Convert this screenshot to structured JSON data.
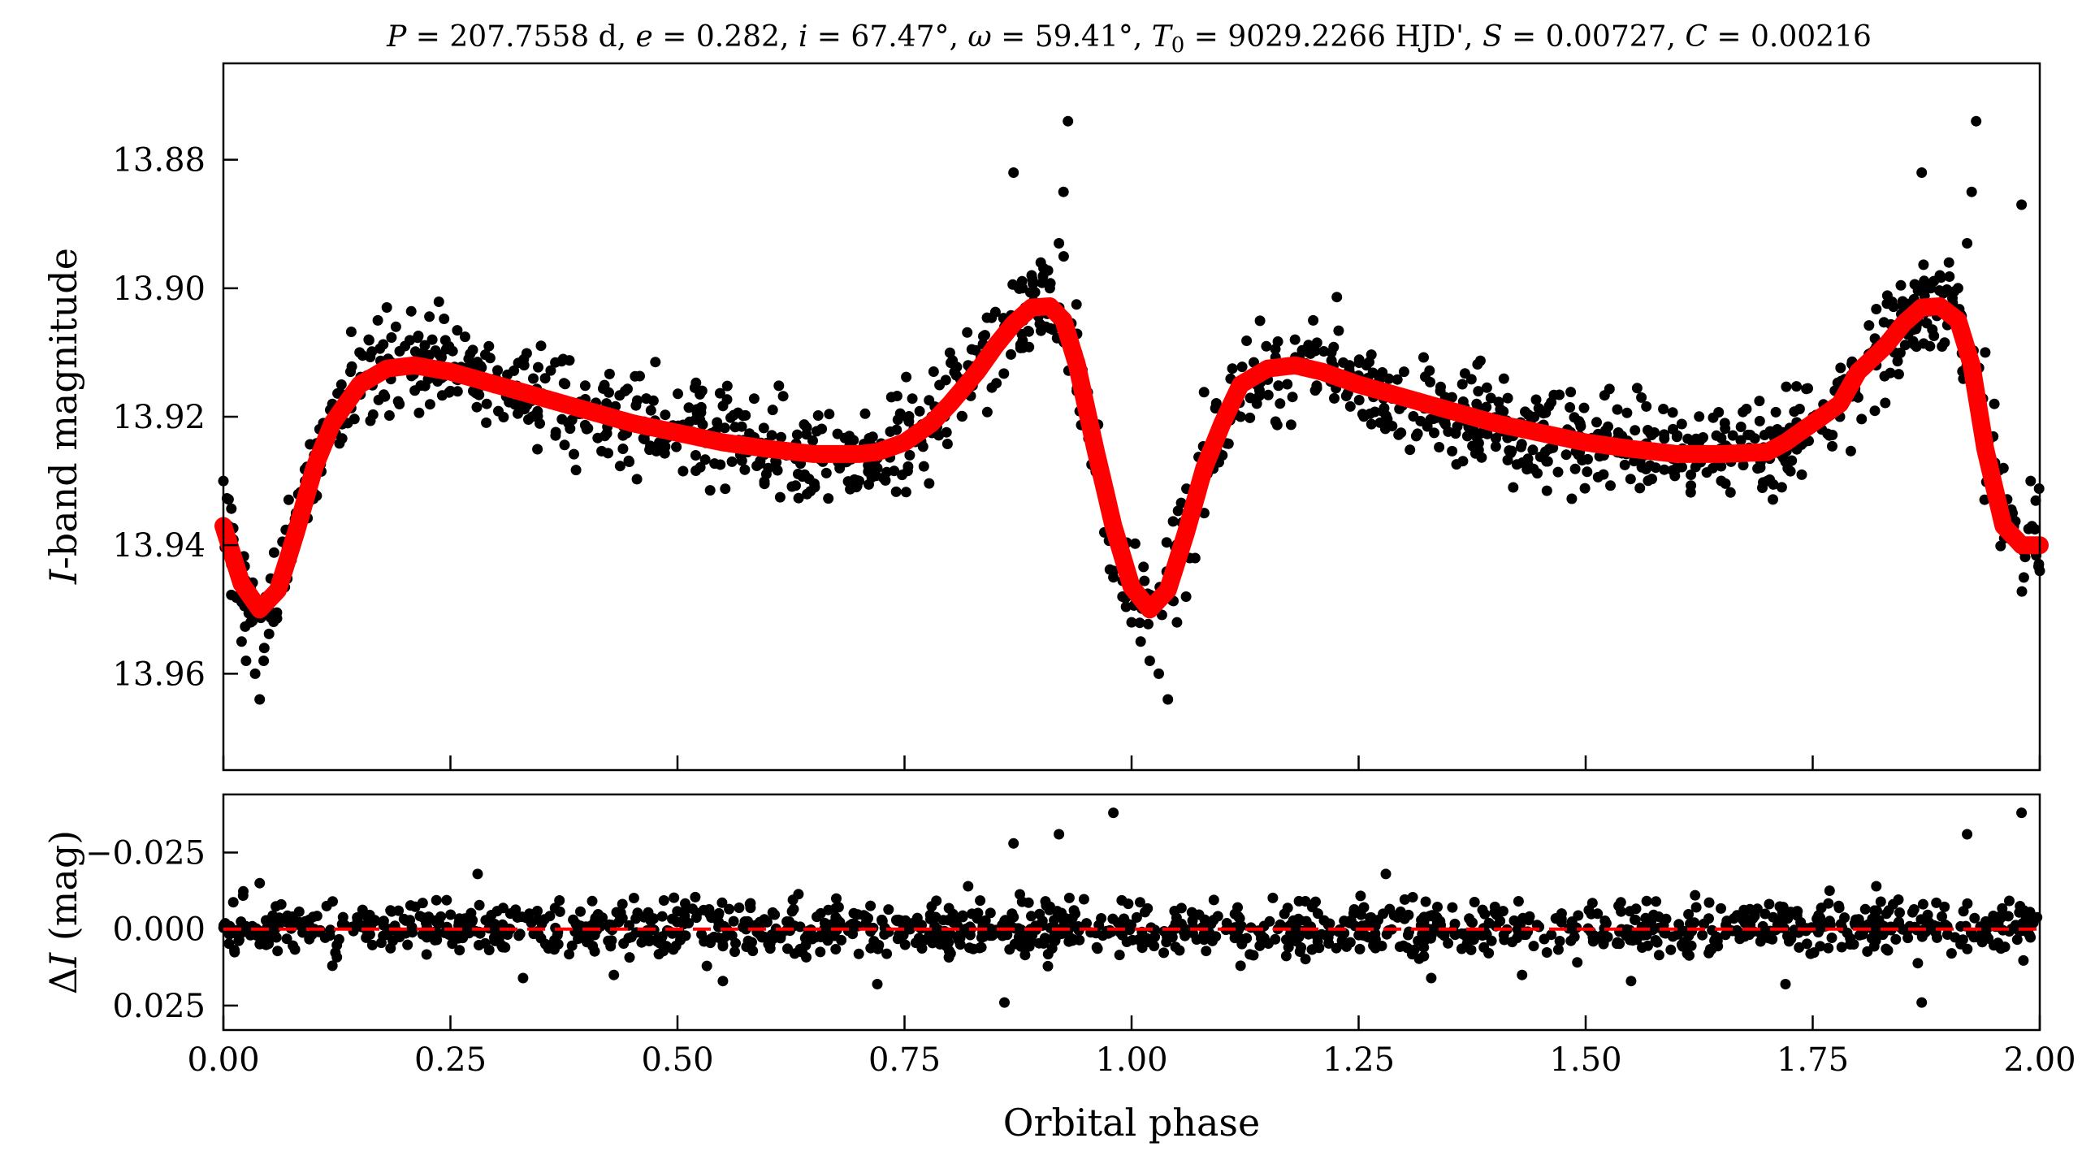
{
  "title": "P = 207.7558 d, e = 0.282, i = 67.47°, ω = 59.41°, T0 = 9029.2266 HJD', S = 0.00727, C = 0.00216",
  "title_parts": {
    "P_sym": "P",
    "P_val": " = 207.7558 d, ",
    "e_sym": "e",
    "e_val": " = 0.282, ",
    "i_sym": "i",
    "i_val": " = 67.47°, ",
    "w_sym": "ω",
    "w_val": " = 59.41°, ",
    "T_sym": "T",
    "T_sub": "0",
    "T_val": " = 9029.2266 HJD', ",
    "S_sym": "S",
    "S_val": " = 0.00727, ",
    "C_sym": "C",
    "C_val": " = 0.00216"
  },
  "top_ylabel": {
    "italic": "I",
    "rest": "-band magnitude"
  },
  "bottom_ylabel": {
    "prefix": "Δ",
    "italic": "I",
    "rest": " (mag)"
  },
  "xlabel": "Orbital phase",
  "colors": {
    "data": "#000000",
    "model": "#ff0000",
    "zero_line": "#ff0000",
    "axes": "#000000",
    "background": "#ffffff"
  },
  "chart_data": [
    {
      "type": "scatter",
      "panel": "light curve",
      "xlim": [
        0.0,
        2.0
      ],
      "ylim": [
        13.975,
        13.865
      ],
      "y_inverted": true,
      "xticks": [
        0.0,
        0.25,
        0.5,
        0.75,
        1.0,
        1.25,
        1.5,
        1.75,
        2.0
      ],
      "yticks": [
        13.88,
        13.9,
        13.92,
        13.94,
        13.96
      ],
      "ytick_labels": [
        "13.88",
        "13.90",
        "13.92",
        "13.94",
        "13.96"
      ],
      "grid": false,
      "legend": "none",
      "series": [
        {
          "kind": "model-line",
          "x": [
            0.0,
            0.02,
            0.04,
            0.06,
            0.08,
            0.1,
            0.12,
            0.15,
            0.18,
            0.21,
            0.25,
            0.3,
            0.35,
            0.4,
            0.45,
            0.5,
            0.55,
            0.6,
            0.65,
            0.7,
            0.72,
            0.75,
            0.78,
            0.8,
            0.83,
            0.85,
            0.87,
            0.89,
            0.91,
            0.925,
            0.94,
            0.96,
            0.98,
            1.0,
            1.02,
            1.04,
            1.06,
            1.08,
            1.1,
            1.12,
            1.15,
            1.18,
            1.21,
            1.25,
            1.3,
            1.35,
            1.4,
            1.45,
            1.5,
            1.55,
            1.6,
            1.65,
            1.7,
            1.72,
            1.75,
            1.78,
            1.8,
            1.83,
            1.85,
            1.87,
            1.89,
            1.91,
            1.925,
            1.94,
            1.96,
            1.98,
            2.0
          ],
          "y": [
            13.937,
            13.946,
            13.95,
            13.947,
            13.938,
            13.928,
            13.921,
            13.915,
            13.9125,
            13.912,
            13.913,
            13.915,
            13.917,
            13.919,
            13.921,
            13.9225,
            13.924,
            13.925,
            13.9258,
            13.9258,
            13.9255,
            13.924,
            13.921,
            13.918,
            13.913,
            13.909,
            13.9055,
            13.903,
            13.9028,
            13.905,
            13.912,
            13.925,
            13.937,
            13.9465,
            13.95,
            13.947,
            13.938,
            13.928,
            13.921,
            13.915,
            13.9125,
            13.912,
            13.913,
            13.915,
            13.917,
            13.919,
            13.921,
            13.9225,
            13.924,
            13.925,
            13.9258,
            13.9258,
            13.9255,
            13.924,
            13.921,
            13.918,
            13.913,
            13.909,
            13.9055,
            13.903,
            13.9028,
            13.905,
            13.912,
            13.925,
            13.937,
            13.94,
            13.94
          ]
        },
        {
          "kind": "observations",
          "x": [
            0.0,
            0.01,
            0.015,
            0.02,
            0.025,
            0.03,
            0.035,
            0.04,
            0.045,
            0.05,
            0.06,
            0.07,
            0.08,
            0.09,
            0.1,
            0.11,
            0.12,
            0.13,
            0.14,
            0.15,
            0.16,
            0.17,
            0.18,
            0.19,
            0.2,
            0.21,
            0.22,
            0.23,
            0.24,
            0.25,
            0.26,
            0.27,
            0.28,
            0.29,
            0.3,
            0.32,
            0.34,
            0.36,
            0.38,
            0.4,
            0.42,
            0.44,
            0.46,
            0.48,
            0.5,
            0.52,
            0.54,
            0.56,
            0.58,
            0.6,
            0.62,
            0.64,
            0.66,
            0.68,
            0.7,
            0.72,
            0.74,
            0.76,
            0.78,
            0.8,
            0.82,
            0.84,
            0.86,
            0.87,
            0.88,
            0.89,
            0.9,
            0.91,
            0.92,
            0.925,
            0.93,
            0.94,
            0.95,
            0.96,
            0.97,
            0.98,
            0.99,
            1.0,
            1.01,
            1.02,
            1.03,
            1.04,
            1.05,
            1.06,
            1.07,
            1.08,
            1.1,
            1.12,
            1.14,
            1.16,
            1.18,
            1.2,
            1.22,
            1.24,
            1.26,
            1.28,
            1.3,
            1.32,
            1.34,
            1.36,
            1.38,
            1.4,
            1.42,
            1.44,
            1.46,
            1.48,
            1.5,
            1.52,
            1.54,
            1.56,
            1.58,
            1.6,
            1.62,
            1.64,
            1.66,
            1.68,
            1.7,
            1.72,
            1.74,
            1.76,
            1.78,
            1.8,
            1.82,
            1.84,
            1.86,
            1.87,
            1.88,
            1.89,
            1.9,
            1.91,
            1.92,
            1.925,
            1.93,
            1.94,
            1.95,
            1.96,
            1.97,
            1.98,
            1.99,
            2.0
          ],
          "y": [
            13.93,
            13.942,
            13.948,
            13.955,
            13.958,
            13.952,
            13.96,
            13.964,
            13.956,
            13.95,
            13.945,
            13.94,
            13.935,
            13.93,
            13.926,
            13.921,
            13.918,
            13.915,
            13.913,
            13.91,
            13.908,
            13.905,
            13.903,
            13.906,
            13.909,
            13.912,
            13.91,
            13.908,
            13.914,
            13.916,
            13.913,
            13.911,
            13.916,
            13.918,
            13.914,
            13.916,
            13.92,
            13.918,
            13.921,
            13.919,
            13.923,
            13.925,
            13.921,
            13.924,
            13.922,
            13.926,
            13.924,
            13.927,
            13.925,
            13.928,
            13.926,
            13.929,
            13.927,
            13.926,
            13.93,
            13.928,
            13.924,
            13.922,
            13.92,
            13.918,
            13.912,
            13.91,
            13.906,
            13.882,
            13.9,
            13.898,
            13.896,
            13.9,
            13.893,
            13.885,
            13.874,
            13.91,
            13.918,
            13.928,
            13.938,
            13.945,
            13.948,
            13.952,
            13.955,
            13.958,
            13.96,
            13.964,
            13.952,
            13.948,
            13.942,
            13.935,
            13.926,
            13.92,
            13.915,
            13.912,
            13.908,
            13.905,
            13.91,
            13.912,
            13.914,
            13.916,
            13.913,
            13.918,
            13.916,
            13.92,
            13.918,
            13.921,
            13.923,
            13.92,
            13.925,
            13.922,
            13.924,
            13.926,
            13.923,
            13.927,
            13.925,
            13.928,
            13.926,
            13.928,
            13.927,
            13.926,
            13.93,
            13.927,
            13.924,
            13.922,
            13.92,
            13.917,
            13.912,
            13.91,
            13.906,
            13.882,
            13.9,
            13.898,
            13.896,
            13.9,
            13.893,
            13.885,
            13.874,
            13.91,
            13.918,
            13.928,
            13.935,
            13.887,
            13.93,
            13.944
          ]
        }
      ]
    },
    {
      "type": "scatter",
      "panel": "residuals",
      "xlim": [
        0.0,
        2.0
      ],
      "ylim": [
        0.033,
        -0.044
      ],
      "y_inverted": true,
      "xticks": [
        0.0,
        0.25,
        0.5,
        0.75,
        1.0,
        1.25,
        1.5,
        1.75,
        2.0
      ],
      "xtick_labels": [
        "0.00",
        "0.25",
        "0.50",
        "0.75",
        "1.00",
        "1.25",
        "1.50",
        "1.75",
        "2.00"
      ],
      "yticks": [
        -0.025,
        0.0,
        0.025
      ],
      "ytick_labels": [
        "−0.025",
        "0.000",
        "0.025"
      ],
      "grid": false,
      "legend": "none",
      "series": [
        {
          "kind": "zero-line",
          "y": 0.0,
          "style": "dashed"
        },
        {
          "kind": "residuals",
          "x": [
            0.04,
            0.12,
            0.28,
            0.33,
            0.43,
            0.55,
            0.72,
            0.82,
            0.86,
            0.87,
            0.92,
            0.98,
            1.12,
            1.28,
            1.33,
            1.43,
            1.55,
            1.72,
            1.82,
            1.87,
            1.92,
            1.98
          ],
          "y": [
            -0.015,
            0.012,
            -0.018,
            0.016,
            0.015,
            0.017,
            0.018,
            -0.014,
            0.024,
            -0.028,
            -0.031,
            -0.038,
            0.012,
            -0.018,
            0.016,
            0.015,
            0.017,
            0.018,
            -0.014,
            0.024,
            -0.031,
            -0.038
          ]
        }
      ]
    }
  ]
}
